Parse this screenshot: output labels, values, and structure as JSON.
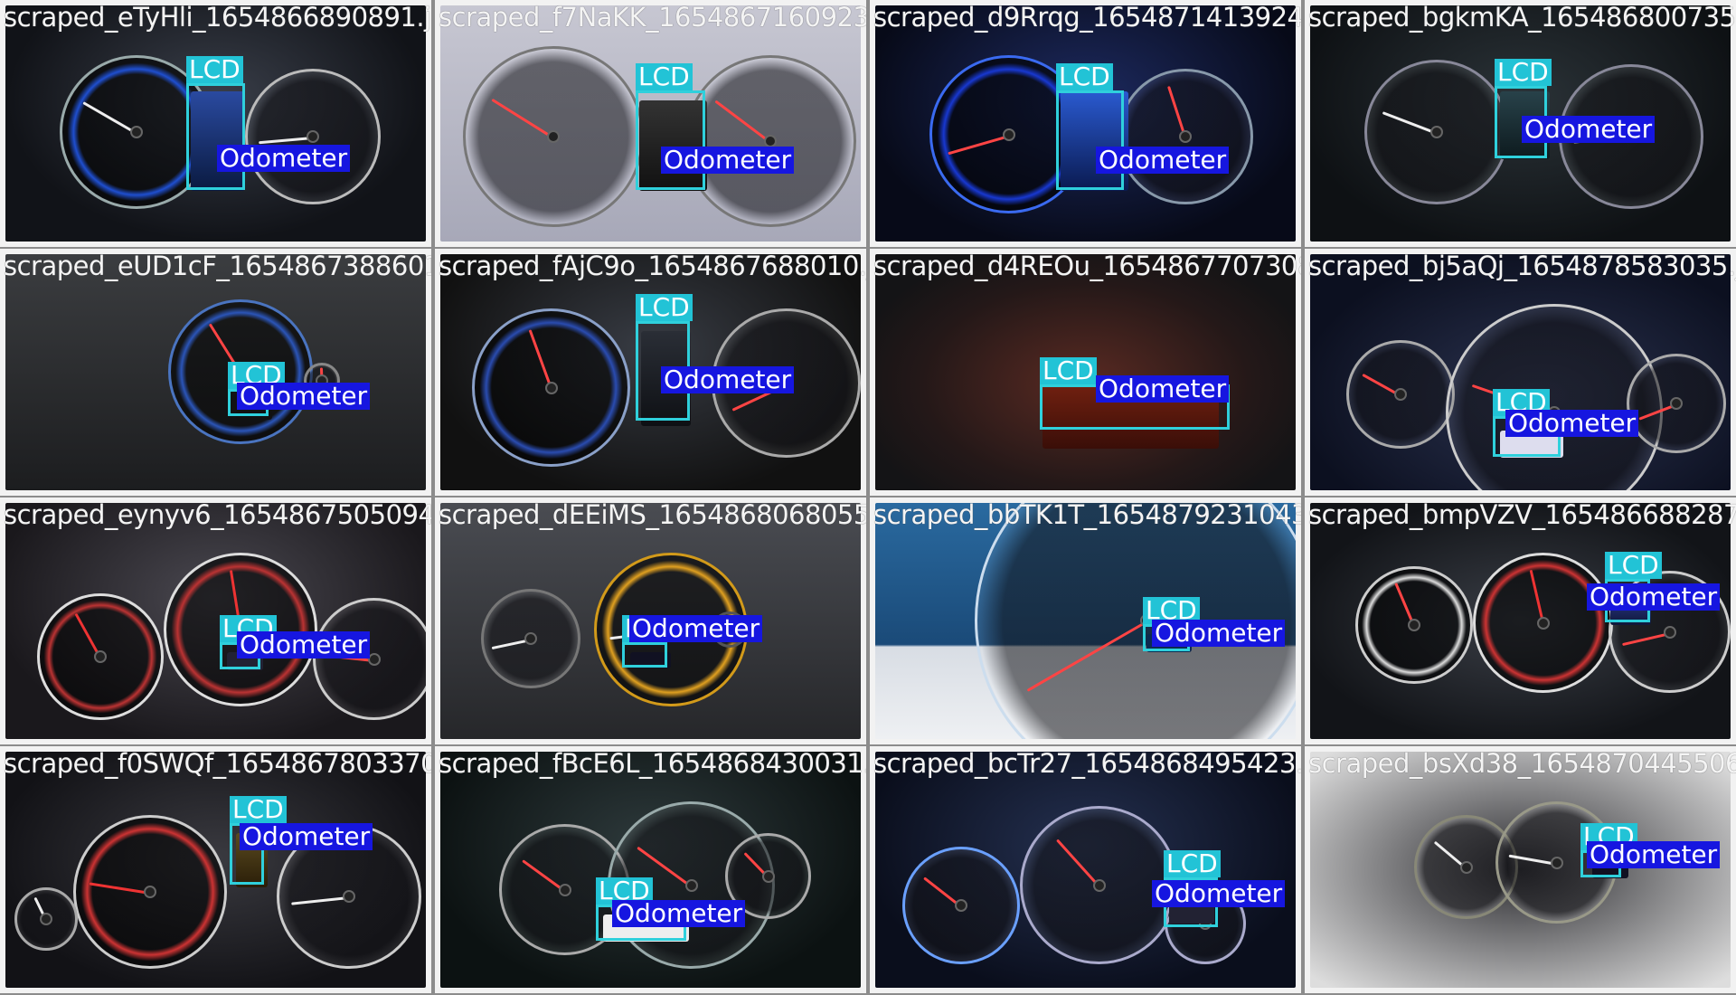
{
  "colors": {
    "lcd_box": "#2fd0dc",
    "lcd_label_bg": "#22c3d6",
    "odometer_box": "#2a2ae6",
    "odometer_label_bg": "#1616e0",
    "grid_gap": "#8c8c8c"
  },
  "tiles": [
    {
      "filename": "scraped_eTyHli_1654866890891.jpg",
      "labels": {
        "lcd": "LCD",
        "odometer": "Odometer"
      }
    },
    {
      "filename": "scraped_f7NaKK_1654867160923.jpg",
      "labels": {
        "lcd": "LCD",
        "odometer": "Odometer"
      }
    },
    {
      "filename": "scraped_d9Rrqg_1654871413924.jpg",
      "labels": {
        "lcd": "LCD",
        "odometer": "Odometer"
      }
    },
    {
      "filename": "scraped_bgkmKA_1654868007352.jpg",
      "labels": {
        "lcd": "LCD",
        "odometer": "Odometer"
      }
    },
    {
      "filename": "scraped_eUD1cF_1654867388601.jpg",
      "labels": {
        "lcd": "LCD",
        "odometer": "Odometer"
      }
    },
    {
      "filename": "scraped_fAjC9o_1654867688010.jpg",
      "labels": {
        "lcd": "LCD",
        "odometer": "Odometer"
      }
    },
    {
      "filename": "scraped_d4REOu_1654867707308.jpg",
      "labels": {
        "lcd": "LCD",
        "odometer": "Odometer"
      }
    },
    {
      "filename": "scraped_bj5aQj_1654878583035.jpg",
      "labels": {
        "lcd": "LCD",
        "odometer": "Odometer"
      }
    },
    {
      "filename": "scraped_eynyv6_1654867505094.jpg",
      "labels": {
        "lcd": "LCD",
        "odometer": "Odometer"
      }
    },
    {
      "filename": "scraped_dEEiMS_1654868068055.jpg",
      "labels": {
        "lcd": "LCD",
        "odometer": "Odometer"
      }
    },
    {
      "filename": "scraped_bbTK1T_1654879231043.jpg",
      "labels": {
        "lcd": "LCD",
        "odometer": "Odometer"
      }
    },
    {
      "filename": "scraped_bmpVZV_1654866882879.jpg",
      "labels": {
        "lcd": "LCD",
        "odometer": "Odometer"
      }
    },
    {
      "filename": "scraped_f0SWQf_1654867803370.jpg",
      "labels": {
        "lcd": "LCD",
        "odometer": "Odometer"
      }
    },
    {
      "filename": "scraped_fBcE6L_1654868430031.jpg",
      "labels": {
        "lcd": "LCD",
        "odometer": "Odometer"
      }
    },
    {
      "filename": "scraped_bcTr27_1654868495423.jpg",
      "labels": {
        "lcd": "LCD",
        "odometer": "Odometer"
      }
    },
    {
      "filename": "scraped_bsXd38_1654870445506.jpg",
      "labels": {
        "lcd": "LCD",
        "odometer": "Odometer"
      }
    }
  ]
}
